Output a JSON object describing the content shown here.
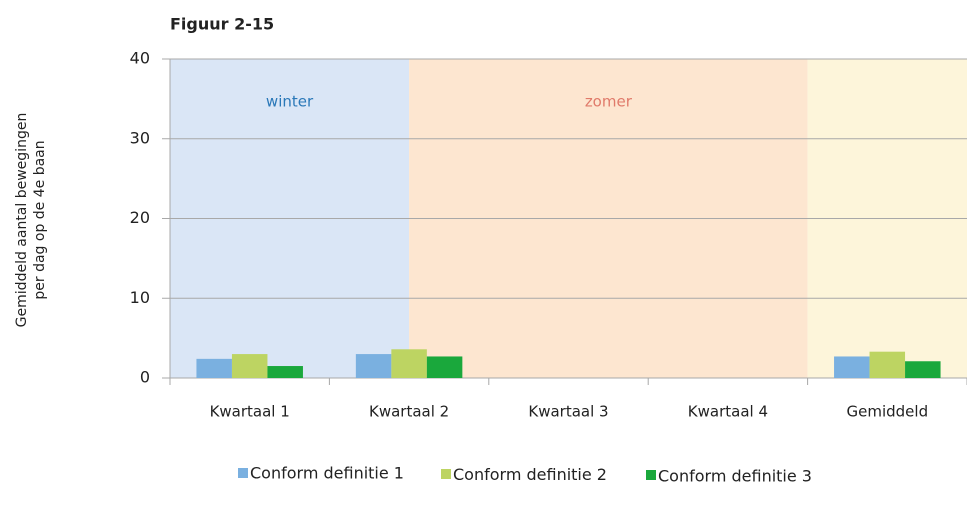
{
  "chart_data": {
    "type": "bar",
    "title": "Figuur 2-15",
    "ylabel": [
      "Gemiddeld aantal bewegingen",
      "per dag op de 4e baan"
    ],
    "categories": [
      "Kwartaal 1",
      "Kwartaal 2",
      "Kwartaal 3",
      "Kwartaal 4",
      "Gemiddeld"
    ],
    "series": [
      {
        "name": "Conform definitie 1",
        "color": "#7ab0e0",
        "values": [
          2.4,
          3.0,
          0,
          0,
          2.7
        ]
      },
      {
        "name": "Conform definitie 2",
        "color": "#bdd462",
        "values": [
          3.0,
          3.6,
          0,
          0,
          3.3
        ]
      },
      {
        "name": "Conform definitie 3",
        "color": "#1aa83c",
        "values": [
          1.5,
          2.7,
          0,
          0,
          2.1
        ]
      }
    ],
    "annotations": [
      {
        "text": "winter",
        "color": "#2a78b8",
        "band_color": "#dae6f6"
      },
      {
        "text": "zomer",
        "color": "#e07a6a",
        "band_color": "#fde6d0"
      }
    ],
    "average_band_color": "#fdf5da",
    "ylim": [
      0,
      40
    ],
    "yticks": [
      0,
      10,
      20,
      30,
      40
    ],
    "grid": true
  }
}
